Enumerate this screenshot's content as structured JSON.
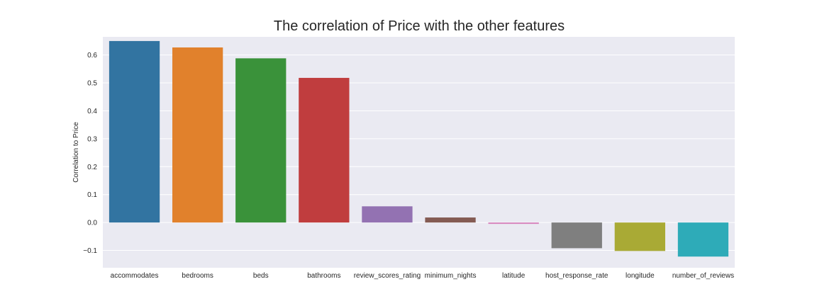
{
  "chart_data": {
    "type": "bar",
    "title": "The correlation of Price with the other features",
    "xlabel": "",
    "ylabel": "Correlation to Price",
    "categories": [
      "accommodates",
      "bedrooms",
      "beds",
      "bathrooms",
      "review_scores_rating",
      "minimum_nights",
      "latitude",
      "host_response_rate",
      "longitude",
      "number_of_reviews"
    ],
    "values": [
      0.65,
      0.627,
      0.588,
      0.518,
      0.058,
      0.018,
      -0.005,
      -0.092,
      -0.102,
      -0.122
    ],
    "colors": [
      "#3274a1",
      "#e1812c",
      "#3a923a",
      "#c03d3e",
      "#9372b2",
      "#845b53",
      "#d684bd",
      "#7f7f7f",
      "#a9aa35",
      "#2eabb8"
    ],
    "ylim": [
      -0.162,
      0.665
    ],
    "yticks": [
      -0.1,
      0.0,
      0.1,
      0.2,
      0.3,
      0.4,
      0.5,
      0.6
    ],
    "ytick_labels": [
      "−0.1",
      "0.0",
      "0.1",
      "0.2",
      "0.3",
      "0.4",
      "0.5",
      "0.6"
    ],
    "grid": true,
    "background": "#eaeaf2"
  }
}
